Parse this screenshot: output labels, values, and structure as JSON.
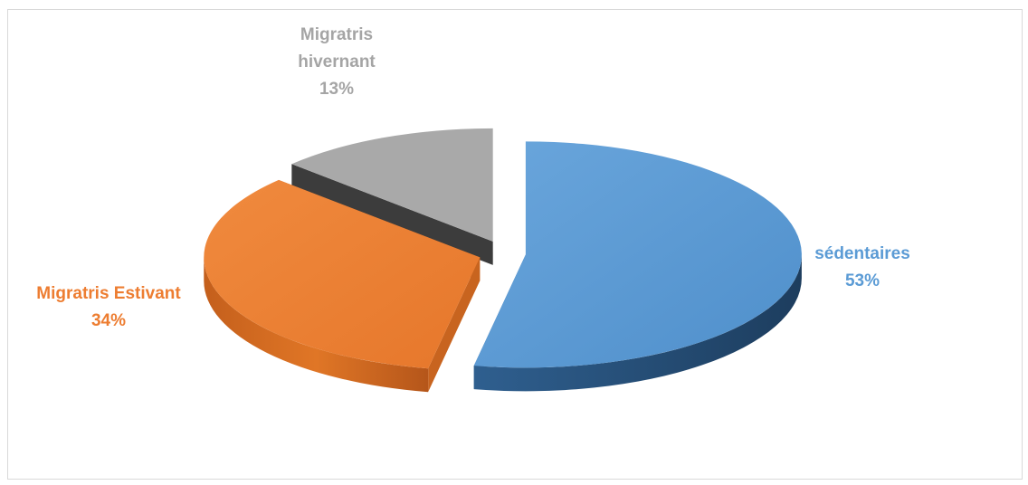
{
  "chart_data": {
    "type": "pie",
    "title": "",
    "categories": [
      "sédentaires",
      "Migratris Estivant",
      "Migratris hivernant"
    ],
    "values": [
      53,
      34,
      13
    ],
    "labels": [
      {
        "name": "sédentaires",
        "value": "53%"
      },
      {
        "name": "Migratris Estivant",
        "value": "34%"
      },
      {
        "name": "Migratris hivernant",
        "value": "13%"
      }
    ],
    "colors": {
      "sédentaires": "#5b9bd5",
      "Migratris Estivant": "#ed7d31",
      "Migratris hivernant": "#a5a5a5"
    },
    "style": "3d-exploded"
  }
}
